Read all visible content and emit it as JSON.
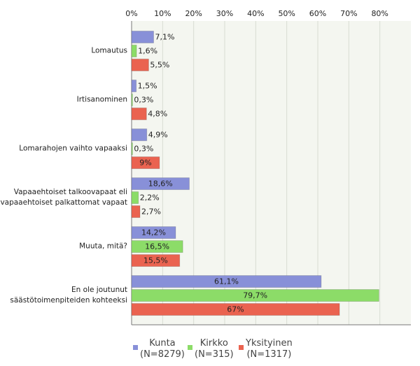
{
  "chart_data": {
    "type": "hbar",
    "categories": [
      "Lomautus",
      "Irtisanominen",
      "Lomarahojen vaihto vapaaksi",
      "Vapaaehtoiset talkoovapaat eli\nvapaaehtoiset palkattomat vapaat",
      "Muuta, mitä?",
      "En ole joutunut\nsäästötoimenpiteiden kohteeksi"
    ],
    "series": [
      {
        "name": "Kunta\n(N=8279)",
        "color": "#8890d8",
        "values": [
          7.1,
          1.5,
          4.9,
          18.6,
          14.2,
          61.1
        ],
        "value_labels": [
          "7,1%",
          "1,5%",
          "4,9%",
          "18,6%",
          "14,2%",
          "61,1%"
        ]
      },
      {
        "name": "Kirkko\n(N=315)",
        "color": "#8cdc68",
        "values": [
          1.6,
          0.3,
          0.3,
          2.2,
          16.5,
          79.7
        ],
        "value_labels": [
          "1,6%",
          "0,3%",
          "0,3%",
          "2,2%",
          "16,5%",
          "79,7%"
        ]
      },
      {
        "name": "Yksityinen\n(N=1317)",
        "color": "#ea6350",
        "values": [
          5.5,
          4.8,
          9,
          2.7,
          15.5,
          67
        ],
        "value_labels": [
          "5,5%",
          "4,8%",
          "9%",
          "2,7%",
          "15,5%",
          "67%"
        ]
      }
    ],
    "xlim": [
      0,
      90
    ],
    "xticks": [
      {
        "value": 0,
        "label": "0%"
      },
      {
        "value": 10,
        "label": "10%"
      },
      {
        "value": 20,
        "label": "20%"
      },
      {
        "value": 30,
        "label": "30%"
      },
      {
        "value": 40,
        "label": "40%"
      },
      {
        "value": 50,
        "label": "50%"
      },
      {
        "value": 60,
        "label": "60%"
      },
      {
        "value": 70,
        "label": "70%"
      },
      {
        "value": 80,
        "label": "80%"
      }
    ],
    "grid": true,
    "legend": "bottom"
  }
}
